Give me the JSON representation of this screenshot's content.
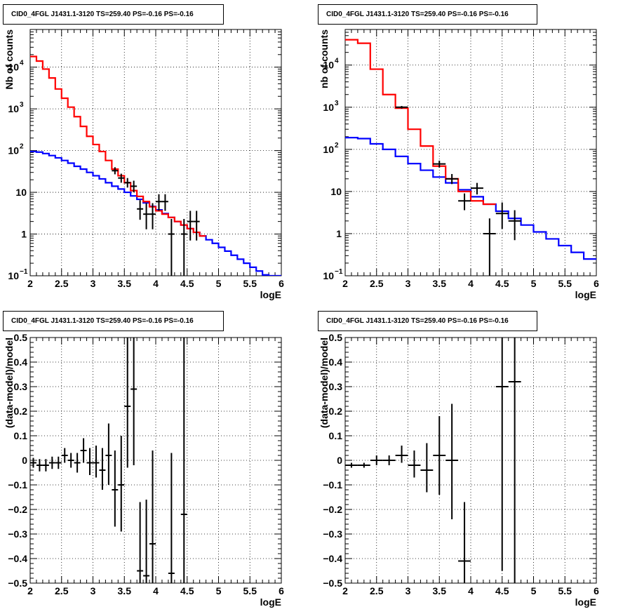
{
  "chart_data": [
    {
      "id": "top-left",
      "type": "line",
      "title": "CID0_4FGL J1431.1-3120 TS=259.40 PS=-0.16 PS=-0.16",
      "xlabel": "logE",
      "ylabel": "Nb of counts",
      "scale": "log",
      "xlim": [
        2,
        6
      ],
      "ylim": [
        0.1,
        80000
      ],
      "grid": true,
      "x_ticks": [
        "2",
        "2.5",
        "3",
        "3.5",
        "4",
        "4.5",
        "5",
        "5.5",
        "6"
      ],
      "y_ticks": [
        {
          "v": 0.1,
          "base": "10",
          "exp": "−1"
        },
        {
          "v": 1,
          "base": "1",
          "exp": ""
        },
        {
          "v": 10,
          "base": "10",
          "exp": ""
        },
        {
          "v": 100,
          "base": "10",
          "exp": "2"
        },
        {
          "v": 1000,
          "base": "10",
          "exp": "3"
        },
        {
          "v": 10000,
          "base": "10",
          "exp": "4"
        }
      ],
      "bin_width": 0.1,
      "series": [
        {
          "color": "#0000ff",
          "edges_start": 2.0,
          "values": [
            95,
            92,
            85,
            76,
            67,
            58,
            50,
            42,
            36,
            30,
            25,
            21,
            17,
            14,
            12,
            10,
            8.2,
            6.8,
            5.6,
            4.6,
            3.8,
            3.1,
            2.5,
            2.0,
            1.65,
            1.35,
            1.1,
            0.9,
            0.73,
            0.6,
            0.48,
            0.39,
            0.31,
            0.25,
            0.2,
            0.16,
            0.13,
            0.105,
            0.1,
            0.1
          ]
        },
        {
          "color": "#ff0000",
          "edges_start": 2.0,
          "values": [
            18000,
            14000,
            9000,
            5500,
            3000,
            1800,
            1100,
            650,
            380,
            220,
            140,
            95,
            58,
            36,
            25,
            17,
            11,
            8,
            6,
            4.5,
            3.6,
            3.0,
            2.5,
            2.0,
            1.65,
            1.35,
            1.1,
            0.9
          ]
        },
        {
          "color": "#000000",
          "edges_start": 2.0,
          "values": [
            18000,
            14000,
            9000,
            5500,
            3000,
            1800,
            1100,
            650,
            380,
            220,
            140,
            95,
            58,
            36,
            25,
            17,
            11,
            8,
            6,
            4.5,
            3.6,
            3.0,
            2.5,
            2.0,
            1.65,
            1.35,
            1.1,
            0.9
          ]
        }
      ],
      "points": [
        {
          "x": 3.35,
          "y": 33,
          "ylo": 27,
          "yhi": 40
        },
        {
          "x": 3.45,
          "y": 22,
          "ylo": 17,
          "yhi": 28
        },
        {
          "x": 3.55,
          "y": 17,
          "ylo": 13,
          "yhi": 22
        },
        {
          "x": 3.65,
          "y": 14,
          "ylo": 10,
          "yhi": 19
        },
        {
          "x": 3.75,
          "y": 4,
          "ylo": 2.2,
          "yhi": 6.5
        },
        {
          "x": 3.85,
          "y": 3,
          "ylo": 1.3,
          "yhi": 5.5
        },
        {
          "x": 3.95,
          "y": 3,
          "ylo": 1.3,
          "yhi": 5.5
        },
        {
          "x": 4.05,
          "y": 6,
          "ylo": 3.6,
          "yhi": 9
        },
        {
          "x": 4.15,
          "y": 6,
          "ylo": 3.6,
          "yhi": 9
        },
        {
          "x": 4.25,
          "y": 1,
          "ylo": 0.1,
          "yhi": 2.3
        },
        {
          "x": 4.45,
          "y": 1,
          "ylo": 0.1,
          "yhi": 2.3
        },
        {
          "x": 4.55,
          "y": 2,
          "ylo": 0.7,
          "yhi": 3.6
        },
        {
          "x": 4.65,
          "y": 2,
          "ylo": 0.7,
          "yhi": 3.6
        }
      ]
    },
    {
      "id": "top-right",
      "type": "line",
      "title": "CID0_4FGL J1431.1-3120 TS=259.40 PS=-0.16 PS=-0.16",
      "xlabel": "logE",
      "ylabel": "nb of counts",
      "scale": "log",
      "xlim": [
        2,
        6
      ],
      "ylim": [
        0.1,
        70000
      ],
      "grid": true,
      "x_ticks": [
        "2",
        "2.5",
        "3",
        "3.5",
        "4",
        "4.5",
        "5",
        "5.5",
        "6"
      ],
      "y_ticks": [
        {
          "v": 0.1,
          "base": "10",
          "exp": "−1"
        },
        {
          "v": 1,
          "base": "1",
          "exp": ""
        },
        {
          "v": 10,
          "base": "10",
          "exp": ""
        },
        {
          "v": 100,
          "base": "10",
          "exp": "2"
        },
        {
          "v": 1000,
          "base": "10",
          "exp": "3"
        },
        {
          "v": 10000,
          "base": "10",
          "exp": "4"
        }
      ],
      "bin_width": 0.2,
      "series": [
        {
          "color": "#0000ff",
          "edges_start": 2.0,
          "values": [
            190,
            180,
            135,
            100,
            68,
            46,
            32,
            22,
            16,
            11,
            7.5,
            5.0,
            3.4,
            2.3,
            1.6,
            1.1,
            0.75,
            0.52,
            0.36,
            0.25
          ]
        },
        {
          "color": "#ff0000",
          "edges_start": 2.0,
          "values": [
            40000,
            33000,
            8000,
            2000,
            950,
            300,
            120,
            40,
            20,
            10,
            6,
            5
          ]
        },
        {
          "color": "#000000",
          "edges_start": 2.0,
          "values": [
            40000,
            33000,
            8000,
            2000,
            950,
            300,
            120,
            40,
            20,
            10,
            6,
            5
          ]
        }
      ],
      "points": [
        {
          "x": 2.9,
          "y": 1000,
          "ylo": 930,
          "yhi": 1070
        },
        {
          "x": 3.5,
          "y": 45,
          "ylo": 37,
          "yhi": 54
        },
        {
          "x": 3.7,
          "y": 20,
          "ylo": 15,
          "yhi": 26
        },
        {
          "x": 3.9,
          "y": 6,
          "ylo": 3.6,
          "yhi": 9
        },
        {
          "x": 4.1,
          "y": 12,
          "ylo": 8.5,
          "yhi": 16
        },
        {
          "x": 4.3,
          "y": 1,
          "ylo": 0.1,
          "yhi": 2.3
        },
        {
          "x": 4.5,
          "y": 3,
          "ylo": 1.3,
          "yhi": 5.5
        },
        {
          "x": 4.7,
          "y": 2,
          "ylo": 0.7,
          "yhi": 3.6
        }
      ]
    },
    {
      "id": "bottom-left",
      "type": "scatter",
      "title": "CID0_4FGL J1431.1-3120 TS=259.40 PS=-0.16 PS=-0.16",
      "xlabel": "logE",
      "ylabel": "(data-model)/model",
      "scale": "linear",
      "xlim": [
        2,
        6
      ],
      "ylim": [
        -0.5,
        0.5
      ],
      "grid": true,
      "x_ticks": [
        "2",
        "2.5",
        "3",
        "3.5",
        "4",
        "4.5",
        "5",
        "5.5",
        "6"
      ],
      "y_ticks": [
        "−0.5",
        "−0.4",
        "−0.3",
        "−0.2",
        "−0.1",
        "0",
        "0.1",
        "0.2",
        "0.3",
        "0.4",
        "0.5"
      ],
      "half_width": 0.05,
      "points": [
        {
          "x": 2.05,
          "y": -0.01,
          "ylo": -0.03,
          "yhi": 0.01
        },
        {
          "x": 2.15,
          "y": -0.02,
          "ylo": -0.045,
          "yhi": 0.005
        },
        {
          "x": 2.25,
          "y": -0.02,
          "ylo": -0.045,
          "yhi": 0.005
        },
        {
          "x": 2.35,
          "y": -0.01,
          "ylo": -0.035,
          "yhi": 0.015
        },
        {
          "x": 2.45,
          "y": -0.01,
          "ylo": -0.035,
          "yhi": 0.015
        },
        {
          "x": 2.55,
          "y": 0.02,
          "ylo": -0.01,
          "yhi": 0.05
        },
        {
          "x": 2.65,
          "y": 0.0,
          "ylo": -0.03,
          "yhi": 0.03
        },
        {
          "x": 2.75,
          "y": -0.01,
          "ylo": -0.05,
          "yhi": 0.03
        },
        {
          "x": 2.85,
          "y": 0.04,
          "ylo": -0.01,
          "yhi": 0.09
        },
        {
          "x": 2.95,
          "y": -0.01,
          "ylo": -0.06,
          "yhi": 0.05
        },
        {
          "x": 3.05,
          "y": -0.01,
          "ylo": -0.07,
          "yhi": 0.06
        },
        {
          "x": 3.15,
          "y": -0.04,
          "ylo": -0.12,
          "yhi": 0.05
        },
        {
          "x": 3.25,
          "y": 0.02,
          "ylo": -0.1,
          "yhi": 0.15
        },
        {
          "x": 3.35,
          "y": -0.12,
          "ylo": -0.27,
          "yhi": 0.04
        },
        {
          "x": 3.45,
          "y": -0.1,
          "ylo": -0.29,
          "yhi": 0.1
        },
        {
          "x": 3.55,
          "y": 0.22,
          "ylo": -0.03,
          "yhi": 0.5
        },
        {
          "x": 3.65,
          "y": 0.29,
          "ylo": -0.02,
          "yhi": 0.5
        },
        {
          "x": 3.75,
          "y": -0.45,
          "ylo": -0.5,
          "yhi": -0.17
        },
        {
          "x": 3.85,
          "y": -0.47,
          "ylo": -0.5,
          "yhi": -0.16
        },
        {
          "x": 3.95,
          "y": -0.34,
          "ylo": -0.5,
          "yhi": 0.04
        },
        {
          "x": 4.25,
          "y": -0.46,
          "ylo": -0.5,
          "yhi": 0.03
        },
        {
          "x": 4.45,
          "y": -0.22,
          "ylo": -0.5,
          "yhi": 0.5
        }
      ]
    },
    {
      "id": "bottom-right",
      "type": "scatter",
      "title": "CID0_4FGL J1431.1-3120 TS=259.40 PS=-0.16 PS=-0.16",
      "xlabel": "logE",
      "ylabel": "(data-model)/model",
      "scale": "linear",
      "xlim": [
        2,
        6
      ],
      "ylim": [
        -0.5,
        0.5
      ],
      "grid": true,
      "x_ticks": [
        "2",
        "2.5",
        "3",
        "3.5",
        "4",
        "4.5",
        "5",
        "5.5",
        "6"
      ],
      "y_ticks": [
        "−0.5",
        "−0.4",
        "−0.3",
        "−0.2",
        "−0.1",
        "0",
        "0.1",
        "0.2",
        "0.3",
        "0.4",
        "0.5"
      ],
      "half_width": 0.1,
      "points": [
        {
          "x": 2.1,
          "y": -0.02,
          "ylo": -0.03,
          "yhi": -0.01
        },
        {
          "x": 2.3,
          "y": -0.02,
          "ylo": -0.03,
          "yhi": -0.01
        },
        {
          "x": 2.5,
          "y": 0.0,
          "ylo": -0.02,
          "yhi": 0.02
        },
        {
          "x": 2.7,
          "y": 0.0,
          "ylo": -0.02,
          "yhi": 0.02
        },
        {
          "x": 2.9,
          "y": 0.02,
          "ylo": -0.01,
          "yhi": 0.06
        },
        {
          "x": 3.1,
          "y": -0.02,
          "ylo": -0.07,
          "yhi": 0.04
        },
        {
          "x": 3.3,
          "y": -0.04,
          "ylo": -0.13,
          "yhi": 0.07
        },
        {
          "x": 3.5,
          "y": 0.02,
          "ylo": -0.14,
          "yhi": 0.18
        },
        {
          "x": 3.7,
          "y": 0.0,
          "ylo": -0.24,
          "yhi": 0.23
        },
        {
          "x": 3.9,
          "y": -0.41,
          "ylo": -0.5,
          "yhi": -0.17
        },
        {
          "x": 4.5,
          "y": 0.3,
          "ylo": -0.45,
          "yhi": 0.5
        },
        {
          "x": 4.7,
          "y": 0.32,
          "ylo": -0.5,
          "yhi": 0.5
        }
      ]
    }
  ]
}
